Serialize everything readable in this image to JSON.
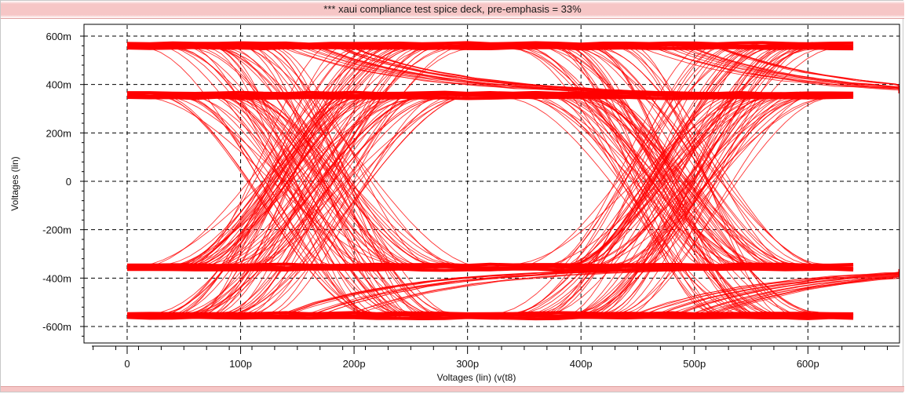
{
  "window": {
    "title": "*** xaui compliance test spice deck, pre-emphasis = 33%"
  },
  "chart_data": {
    "type": "line",
    "subtype": "eye diagram",
    "title": "*** xaui compliance test spice deck, pre-emphasis = 33%",
    "xlabel": "Voltages (lin) (v(t8)",
    "ylabel": "Voltages (lin)",
    "x_unit": "s",
    "y_unit": "V",
    "xlim": [
      -30,
      670
    ],
    "ylim": [
      -650,
      630
    ],
    "x_ticks": [
      0,
      100,
      200,
      300,
      400,
      500,
      600
    ],
    "x_tick_labels": [
      "0",
      "100p",
      "200p",
      "300p",
      "400p",
      "500p",
      "600p"
    ],
    "y_ticks": [
      600,
      400,
      200,
      0,
      -200,
      -400,
      -600
    ],
    "y_tick_labels": [
      "600m",
      "400m",
      "200m",
      "0",
      "-200m",
      "-400m",
      "-600m"
    ],
    "grid": true,
    "grid_style": "dashed",
    "trace_color": "#ff0000",
    "unit_interval_ps": 320,
    "eye_crossings_ps": [
      160,
      480
    ],
    "data_range_ps": [
      0,
      640
    ],
    "voltage_levels_mV": {
      "high_emphasized": 560,
      "high_steady": 355,
      "low_steady": -355,
      "low_emphasized": -555
    }
  }
}
